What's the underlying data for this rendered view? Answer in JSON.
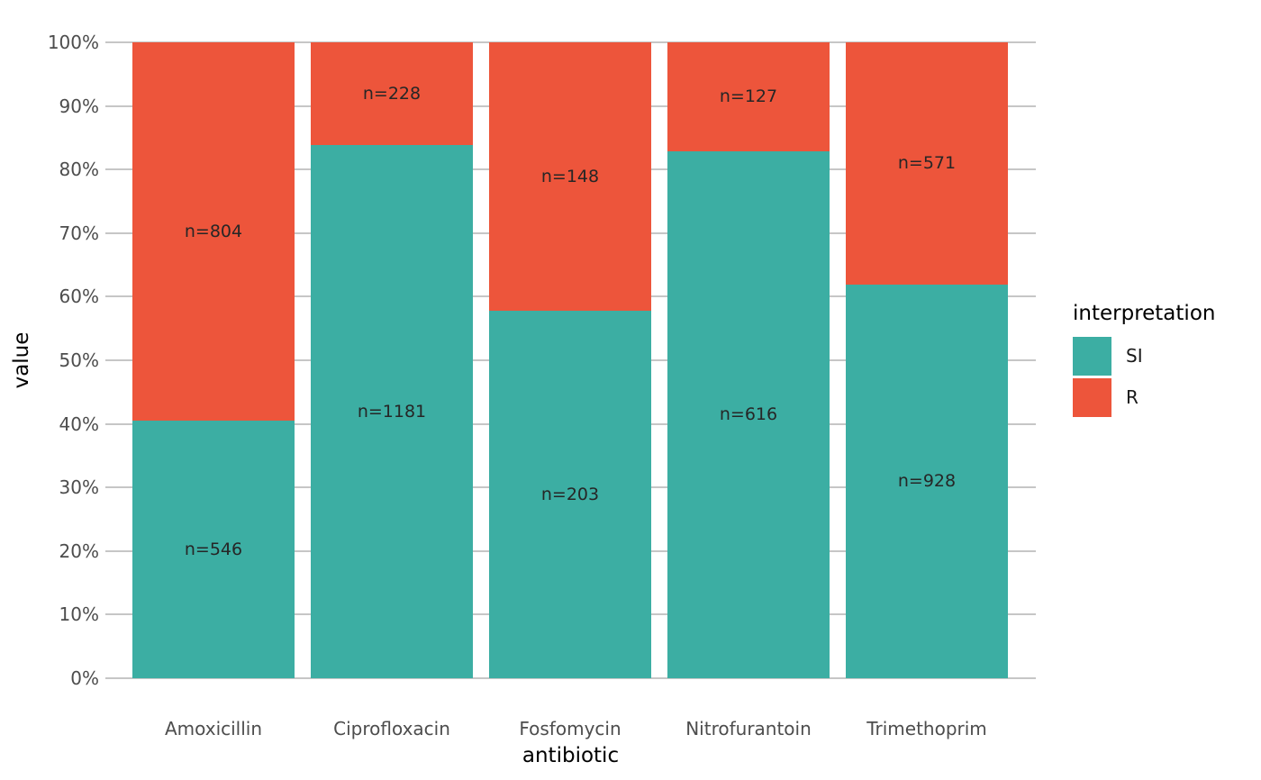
{
  "chart_data": {
    "type": "bar",
    "stacked": true,
    "percent_scale": true,
    "xlabel": "antibiotic",
    "ylabel": "value",
    "categories": [
      "Amoxicillin",
      "Ciprofloxacin",
      "Fosfomycin",
      "Nitrofurantoin",
      "Trimethoprim"
    ],
    "series": [
      {
        "name": "SI",
        "color": "#3CAEA3",
        "values": [
          546,
          1181,
          203,
          616,
          928
        ],
        "labels": [
          "n=546",
          "n=1181",
          "n=203",
          "n=616",
          "n=928"
        ]
      },
      {
        "name": "R",
        "color": "#ED553B",
        "values": [
          804,
          228,
          148,
          127,
          571
        ],
        "labels": [
          "n=804",
          "n=228",
          "n=148",
          "n=127",
          "n=571"
        ]
      }
    ],
    "y_ticks": [
      "0%",
      "10%",
      "20%",
      "30%",
      "40%",
      "50%",
      "60%",
      "70%",
      "80%",
      "90%",
      "100%"
    ],
    "ylim": [
      0,
      100
    ],
    "grid": true,
    "legend": {
      "title": "interpretation",
      "position": "right",
      "entries": [
        {
          "label": "SI",
          "color": "#3CAEA3"
        },
        {
          "label": "R",
          "color": "#ED553B"
        }
      ]
    }
  },
  "style_colors": {
    "gridline": "#C6C6C6",
    "tick_text": "#4d4d4d",
    "bar_label_text": "#262626"
  }
}
